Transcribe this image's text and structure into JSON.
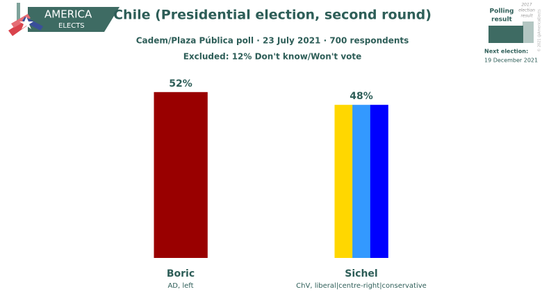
{
  "chart_data": {
    "type": "bar",
    "title": "Chile (Presidential election, second round)",
    "subtitle": [
      "Cadem/Plaza Pública poll · 23 July 2021 · 700 respondents",
      "Excluded: 12% Don't know/Won't vote"
    ],
    "categories": [
      "Boric",
      "Sichel"
    ],
    "sublabels": [
      "AD, left",
      "ChV, liberal|centre-right|conservative"
    ],
    "values": [
      52,
      48
    ],
    "value_labels": [
      "52%",
      "48%"
    ],
    "colors": [
      [
        "#990000"
      ],
      [
        "#ffd700",
        "#3399ff",
        "#0000ff"
      ]
    ],
    "logo": [
      "AMERICA",
      "ELECTS"
    ],
    "legend": {
      "polling": [
        "Polling",
        "result"
      ],
      "previous": [
        "2017",
        "election",
        "result"
      ],
      "next_label": "Next election:",
      "next_date": "19 December 2021"
    },
    "copyright": "© 2021 @AmericaElects"
  }
}
